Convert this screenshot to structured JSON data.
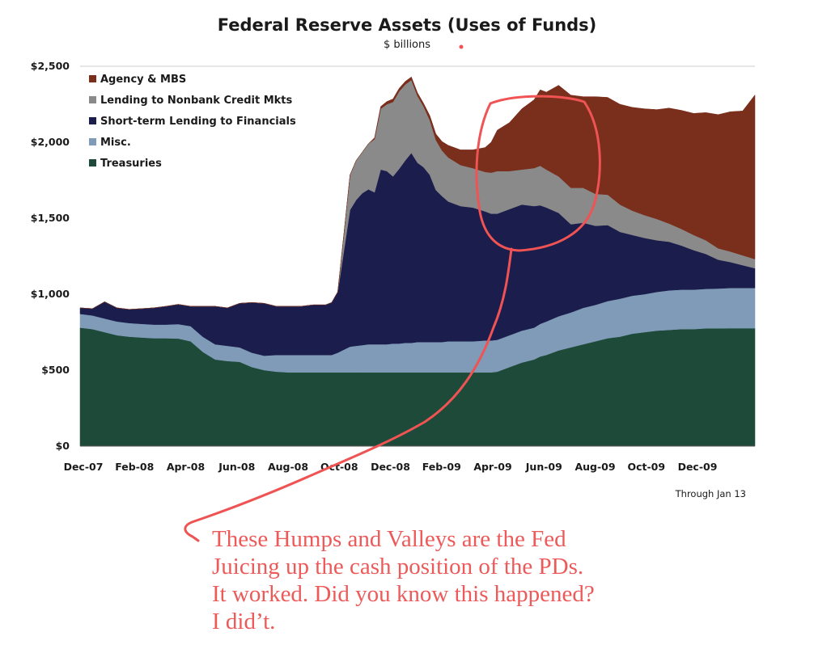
{
  "chart_data": {
    "type": "area",
    "stacked": true,
    "title": "Federal Reserve Assets (Uses of Funds)",
    "subtitle": "$ billions",
    "note": "Through Jan 13",
    "ylim": [
      0,
      2500
    ],
    "y_ticks": [
      "$0",
      "$500",
      "$1,000",
      "$1,500",
      "$2,000",
      "$2,500"
    ],
    "y_tick_values": [
      0,
      500,
      1000,
      1500,
      2000,
      2500
    ],
    "x_tick_labels": [
      "Dec-07",
      "Feb-08",
      "Apr-08",
      "Jun-08",
      "Aug-08",
      "Oct-08",
      "Dec-08",
      "Feb-09",
      "Apr-09",
      "Jun-09",
      "Aug-09",
      "Oct-09",
      "Dec-09"
    ],
    "x_start": "2007-12-05",
    "x_end": "2010-01-13",
    "grid": false,
    "legend_position": "top-left",
    "dates": [
      "2007-12-05",
      "2007-12-19",
      "2008-01-02",
      "2008-01-16",
      "2008-01-30",
      "2008-02-13",
      "2008-02-27",
      "2008-03-12",
      "2008-03-26",
      "2008-04-09",
      "2008-04-23",
      "2008-05-07",
      "2008-05-21",
      "2008-06-04",
      "2008-06-18",
      "2008-07-02",
      "2008-07-16",
      "2008-07-30",
      "2008-08-13",
      "2008-08-27",
      "2008-09-10",
      "2008-09-17",
      "2008-09-24",
      "2008-10-01",
      "2008-10-08",
      "2008-10-15",
      "2008-10-22",
      "2008-10-29",
      "2008-11-05",
      "2008-11-12",
      "2008-11-19",
      "2008-11-26",
      "2008-12-03",
      "2008-12-10",
      "2008-12-17",
      "2008-12-24",
      "2008-12-31",
      "2009-01-07",
      "2009-01-14",
      "2009-01-21",
      "2009-01-28",
      "2009-02-11",
      "2009-02-25",
      "2009-03-11",
      "2009-03-18",
      "2009-03-25",
      "2009-04-08",
      "2009-04-22",
      "2009-05-06",
      "2009-05-13",
      "2009-05-20",
      "2009-06-03",
      "2009-06-17",
      "2009-07-01",
      "2009-07-15",
      "2009-07-29",
      "2009-08-12",
      "2009-08-26",
      "2009-09-09",
      "2009-09-23",
      "2009-10-07",
      "2009-10-21",
      "2009-11-04",
      "2009-11-18",
      "2009-12-02",
      "2009-12-16",
      "2009-12-30",
      "2010-01-13"
    ],
    "series": [
      {
        "name": "Treasuries",
        "color": "#1e4a3a",
        "values": [
          780,
          770,
          750,
          730,
          720,
          715,
          710,
          710,
          708,
          690,
          620,
          570,
          560,
          555,
          520,
          500,
          490,
          485,
          485,
          485,
          485,
          485,
          485,
          485,
          485,
          485,
          485,
          485,
          485,
          485,
          485,
          485,
          485,
          485,
          485,
          485,
          485,
          485,
          485,
          485,
          485,
          485,
          485,
          485,
          485,
          490,
          520,
          550,
          570,
          590,
          600,
          630,
          650,
          670,
          690,
          710,
          720,
          740,
          750,
          760,
          765,
          770,
          770,
          775,
          775,
          776,
          776,
          776
        ]
      },
      {
        "name": "Misc.",
        "color": "#7f9bb7",
        "values": [
          90,
          90,
          90,
          90,
          90,
          90,
          90,
          90,
          95,
          100,
          100,
          100,
          100,
          95,
          95,
          95,
          110,
          115,
          115,
          115,
          115,
          115,
          130,
          150,
          170,
          175,
          180,
          185,
          185,
          185,
          185,
          190,
          190,
          195,
          195,
          200,
          200,
          200,
          200,
          200,
          205,
          205,
          205,
          210,
          210,
          210,
          210,
          210,
          210,
          215,
          220,
          225,
          230,
          240,
          240,
          245,
          250,
          250,
          250,
          255,
          260,
          260,
          260,
          260,
          262,
          265,
          265,
          265
        ]
      },
      {
        "name": "Short-term Lending to Financials",
        "color": "#1b1d4d",
        "values": [
          40,
          45,
          110,
          90,
          90,
          100,
          110,
          120,
          130,
          130,
          200,
          250,
          250,
          290,
          330,
          345,
          320,
          320,
          320,
          330,
          330,
          345,
          400,
          650,
          900,
          960,
          1000,
          1020,
          1000,
          1150,
          1140,
          1100,
          1150,
          1200,
          1250,
          1180,
          1150,
          1100,
          1000,
          960,
          920,
          890,
          880,
          850,
          835,
          830,
          830,
          830,
          800,
          780,
          750,
          680,
          580,
          560,
          520,
          500,
          440,
          400,
          370,
          340,
          320,
          290,
          260,
          230,
          190,
          170,
          150,
          130
        ]
      },
      {
        "name": "Lending to Nonbank Credit Mkts",
        "color": "#8a8a8a",
        "values": [
          0,
          0,
          0,
          0,
          0,
          0,
          0,
          0,
          0,
          0,
          0,
          0,
          0,
          0,
          0,
          0,
          0,
          0,
          0,
          0,
          0,
          0,
          0,
          110,
          230,
          260,
          270,
          300,
          350,
          400,
          440,
          490,
          510,
          500,
          480,
          440,
          400,
          360,
          330,
          300,
          290,
          270,
          260,
          260,
          270,
          280,
          250,
          230,
          250,
          260,
          250,
          240,
          240,
          230,
          210,
          200,
          180,
          160,
          150,
          140,
          120,
          110,
          100,
          90,
          75,
          70,
          65,
          60
        ]
      },
      {
        "name": "Agency & MBS",
        "color": "#7a2e1c",
        "values": [
          0,
          0,
          0,
          0,
          0,
          0,
          0,
          0,
          0,
          0,
          0,
          0,
          0,
          0,
          0,
          0,
          0,
          0,
          0,
          0,
          0,
          0,
          0,
          0,
          0,
          0,
          0,
          0,
          10,
          15,
          18,
          20,
          20,
          20,
          20,
          20,
          20,
          30,
          40,
          60,
          80,
          100,
          120,
          160,
          200,
          270,
          320,
          400,
          450,
          500,
          510,
          600,
          610,
          600,
          640,
          640,
          660,
          680,
          700,
          720,
          760,
          780,
          800,
          840,
          880,
          920,
          950,
          1080
        ]
      }
    ]
  },
  "annotation": {
    "lines": [
      "These Humps and Valleys are the Fed",
      "Juicing up the cash position of the PDs.",
      "It worked. Did you know this happened?",
      "I did’t."
    ],
    "color": "#ec5a5a"
  }
}
